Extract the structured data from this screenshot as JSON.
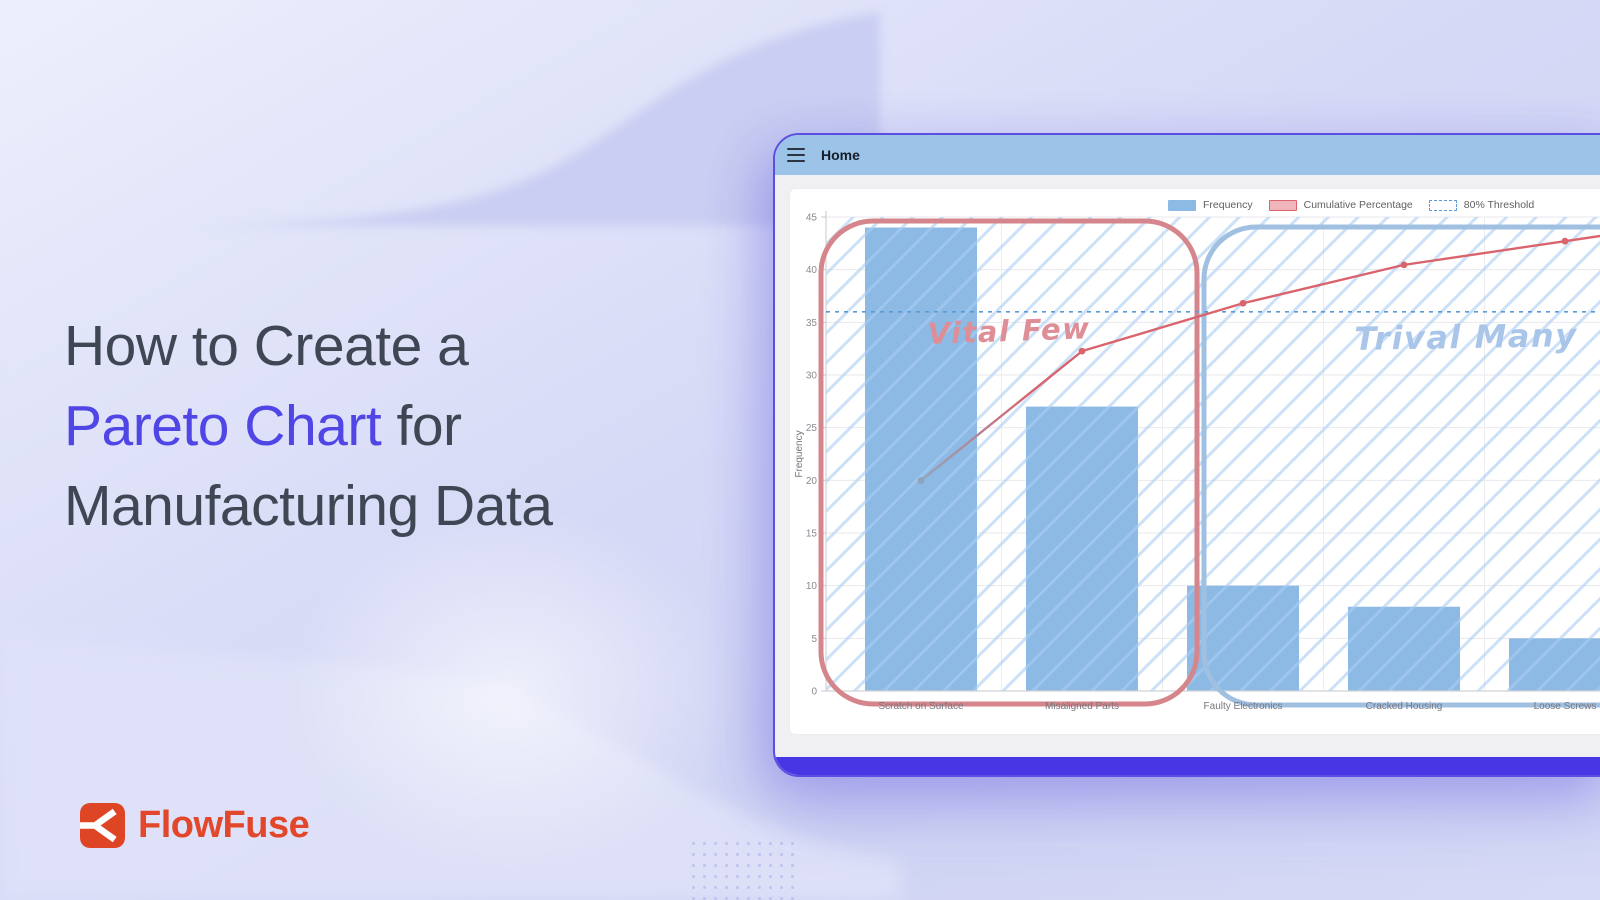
{
  "page": {
    "headline": {
      "prefix": "How to Create a",
      "accent": "Pareto Chart",
      "after_accent": " for",
      "line3": "Manufacturing Data",
      "text_color": "#3f4754",
      "accent_color": "#4f46e5"
    },
    "brand": {
      "name": "FlowFuse",
      "color": "#e2472b",
      "icon": "flowfuse-fork-icon"
    }
  },
  "window": {
    "title": "Home",
    "menu_icon": "hamburger-icon",
    "header_bg": "#9cc3e8",
    "border_color": "#5b4ee0",
    "footer_color": "#4836e4"
  },
  "chart_data": {
    "type": "bar",
    "subtype": "pareto",
    "categories": [
      "Scratch on Surface",
      "Misaligned Parts",
      "Faulty Electronics",
      "Cracked Housing",
      "Loose Screws"
    ],
    "series": [
      {
        "name": "Frequency",
        "type": "bar",
        "values": [
          44,
          27,
          10,
          8,
          5
        ],
        "color": "#8cbae5"
      },
      {
        "name": "Cumulative Percentage",
        "type": "line",
        "values_percent": [
          44.4,
          71.7,
          81.8,
          89.9,
          94.9
        ],
        "color": "#d9646e",
        "first_marker_color": "#91a4ba",
        "swatch_fill": "#f0b6bb"
      },
      {
        "name": "80% Threshold",
        "type": "threshold",
        "value_percent": 80,
        "style": "dashed",
        "color": "#5b9bd5"
      }
    ],
    "ylabel": "Frequency",
    "ylim": [
      0,
      45
    ],
    "y_ticks": [
      0,
      5,
      10,
      15,
      20,
      25,
      30,
      35,
      40,
      45
    ],
    "percent_axis_span": [
      0,
      100
    ],
    "legend_position": "top",
    "grid": true,
    "hatch_color": "rgba(170,205,242,0.6)",
    "annotations": [
      {
        "text": "Vital Few",
        "color": "#dd8e97",
        "region_stroke": "#d5868c"
      },
      {
        "text": "Trival Many",
        "color": "#a9c6ea",
        "region_stroke": "#a0c0e2"
      }
    ]
  }
}
